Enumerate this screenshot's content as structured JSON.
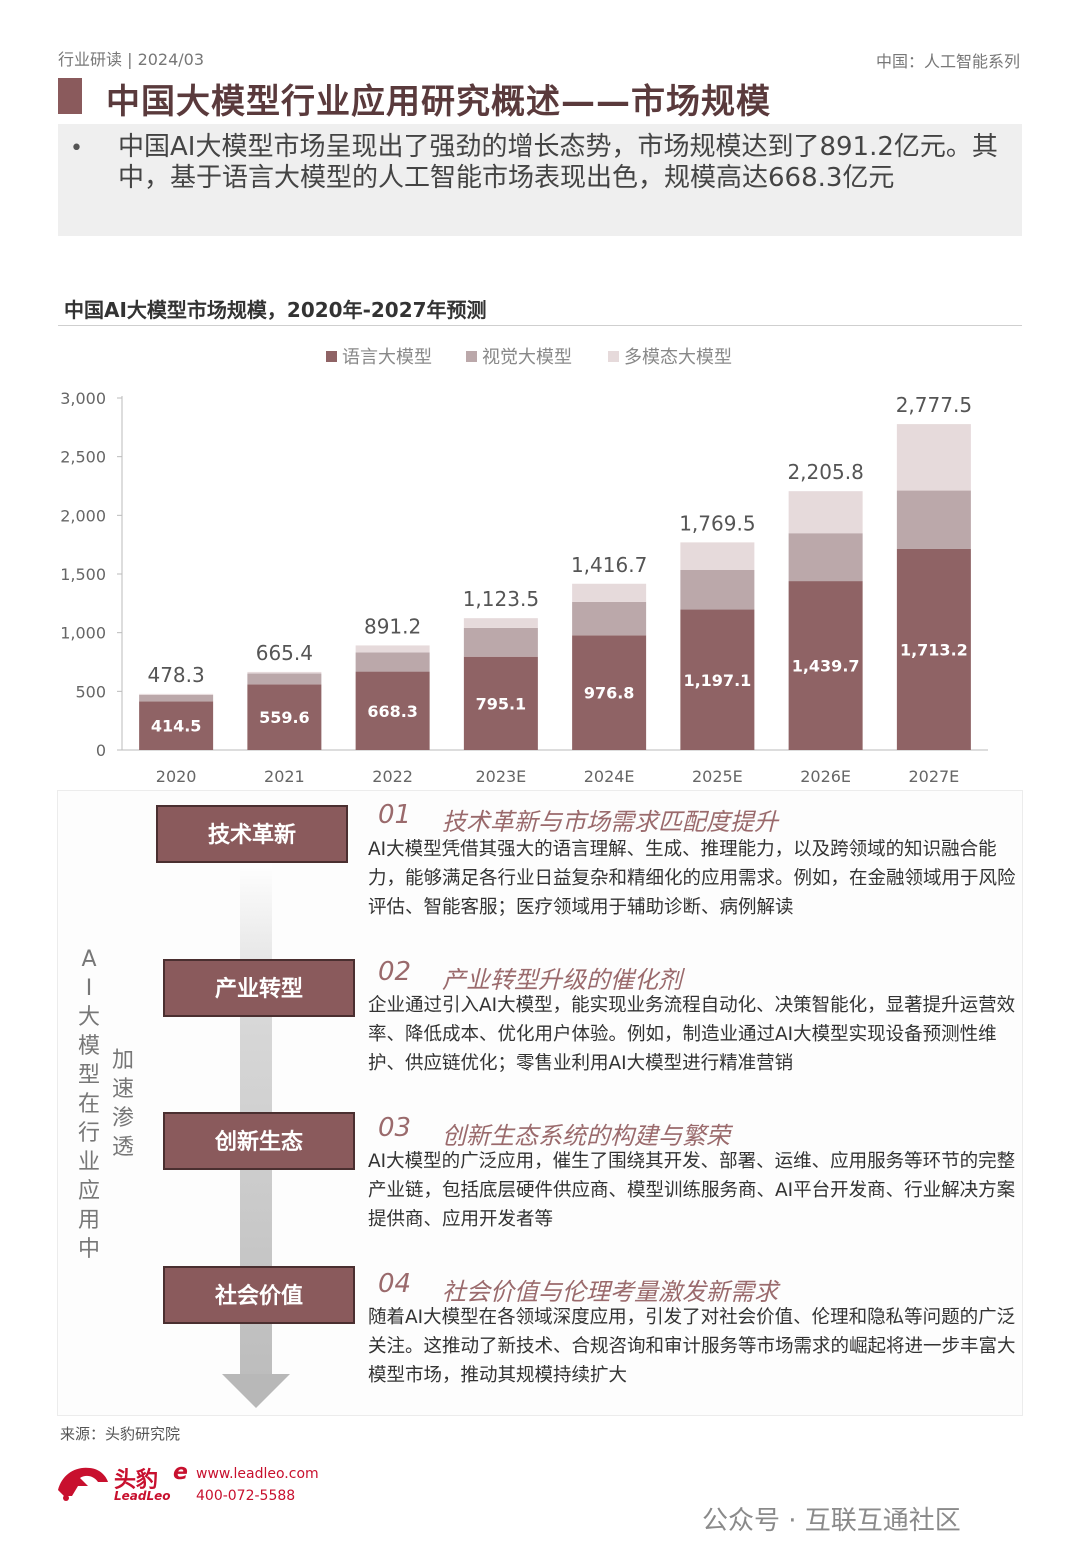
{
  "header": {
    "left": "行业研读 | 2024/03",
    "right": "中国：人工智能系列",
    "title": "中国大模型行业应用研究概述——市场规模"
  },
  "summary": {
    "bullet": "•",
    "text": "中国AI大模型市场呈现出了强劲的增长态势，市场规模达到了891.2亿元。其中，基于语言大模型的人工智能市场表现出色，规模高达668.3亿元"
  },
  "chart_data": {
    "type": "bar",
    "stacked": true,
    "title": "中国AI大模型市场规模，2020年-2027年预测",
    "categories": [
      "2020",
      "2021",
      "2022",
      "2023E",
      "2024E",
      "2025E",
      "2026E",
      "2027E"
    ],
    "series": [
      {
        "name": "语言大模型",
        "color": "#8f6365",
        "values": [
          414.5,
          559.6,
          668.3,
          795.1,
          976.8,
          1197.1,
          1439.7,
          1713.2
        ]
      },
      {
        "name": "视觉大模型",
        "color": "#bba8aa",
        "values": [
          55,
          92,
          163,
          246,
          285,
          337,
          408,
          498
        ]
      },
      {
        "name": "多模态大模型",
        "color": "#e6dadb",
        "values": [
          8.8,
          13.8,
          59.9,
          82.4,
          155.0,
          235.4,
          358.1,
          566.3
        ]
      }
    ],
    "inner_labels": [
      "414.5",
      "559.6",
      "668.3",
      "795.1",
      "976.8",
      "1,197.1",
      "1,439.7",
      "1,713.2"
    ],
    "totals": [
      478.3,
      665.4,
      891.2,
      1123.5,
      1416.7,
      1769.5,
      2205.8,
      2777.5
    ],
    "total_labels": [
      "478.3",
      "665.4",
      "891.2",
      "1,123.5",
      "1,416.7",
      "1,769.5",
      "2,205.8",
      "2,777.5"
    ],
    "yticks": [
      0,
      500,
      1000,
      1500,
      2000,
      2500,
      3000
    ],
    "ytick_labels": [
      "0",
      "500",
      "1,000",
      "1,500",
      "2,000",
      "2,500",
      "3,000"
    ],
    "ylim": [
      0,
      3000
    ],
    "legend_position": "top-center",
    "grid": false
  },
  "process": {
    "side_a": [
      "A",
      "I",
      "大",
      "模",
      "型",
      "在",
      "行",
      "业",
      "应",
      "用",
      "中"
    ],
    "side_b": [
      "加",
      "速",
      "渗",
      "透"
    ],
    "items": [
      {
        "tag": "技术革新",
        "num": "01",
        "title": "技术革新与市场需求匹配度提升",
        "body": "AI大模型凭借其强大的语言理解、生成、推理能力，以及跨领域的知识融合能力，能够满足各行业日益复杂和精细化的应用需求。例如，在金融领域用于风险评估、智能客服；医疗领域用于辅助诊断、病例解读"
      },
      {
        "tag": "产业转型",
        "num": "02",
        "title": "产业转型升级的催化剂",
        "body": "企业通过引入AI大模型，能实现业务流程自动化、决策智能化，显著提升运营效率、降低成本、优化用户体验。例如，制造业通过AI大模型实现设备预测性维护、供应链优化；零售业利用AI大模型进行精准营销"
      },
      {
        "tag": "创新生态",
        "num": "03",
        "title": "创新生态系统的构建与繁荣",
        "body": "AI大模型的广泛应用，催生了围绕其开发、部署、运维、应用服务等环节的完整产业链，包括底层硬件供应商、模型训练服务商、AI平台开发商、行业解决方案提供商、应用开发者等"
      },
      {
        "tag": "社会价值",
        "num": "04",
        "title": "社会价值与伦理考量激发新需求",
        "body": "随着AI大模型在各领域深度应用，引发了对社会价值、伦理和隐私等问题的广泛关注。这推动了新技术、合规咨询和审计服务等市场需求的崛起将进一步丰富大模型市场，推动其规模持续扩大"
      }
    ]
  },
  "footer": {
    "source": "来源：头豹研究院",
    "logo_cn": "头豹",
    "logo_en": "LeadLeo",
    "logo_e": "e",
    "website": "www.leadleo.com",
    "phone": "400-072-5588",
    "wechat": "公众号 · 互联互通社区"
  }
}
